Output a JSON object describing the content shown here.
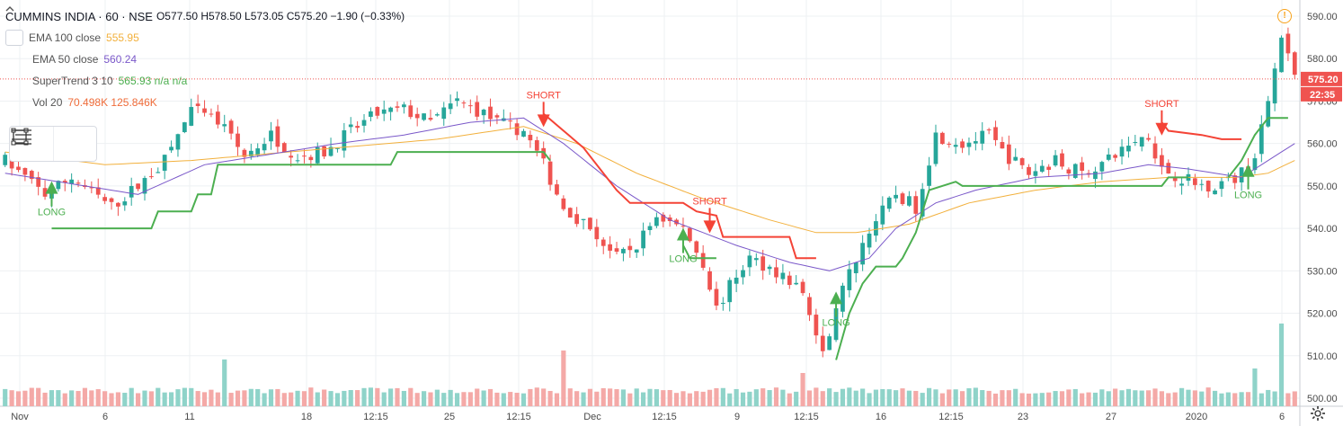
{
  "header": {
    "symbol": "CUMMINS INDIA · 60 · NSE",
    "ohlc": "O577.50  H578.50  L573.05  C575.20  −1.90 (−0.33%)"
  },
  "indicators": [
    {
      "name": "EMA 100 close",
      "value": "555.95",
      "color": "#f2b03c"
    },
    {
      "name": "EMA 50 close",
      "value": "560.24",
      "color": "#7a58c9"
    },
    {
      "name": "SuperTrend 3 10",
      "value": "565.93  n/a  n/a",
      "color": "#4caf50"
    },
    {
      "name": "Vol 20",
      "value": "70.498K  125.846K",
      "color": "#ef6c3a"
    }
  ],
  "price_axis": {
    "labels": [
      "590.00",
      "580.00",
      "570.00",
      "560.00",
      "550.00",
      "540.00",
      "530.00",
      "520.00",
      "510.00",
      "500.00"
    ],
    "last_price": "575.20",
    "countdown": "22:35",
    "last_price_color": "#ef5350"
  },
  "time_axis": {
    "labels": [
      "Nov",
      "6",
      "11",
      "18",
      "12:15",
      "25",
      "12:15",
      "Dec",
      "12:15",
      "9",
      "12:15",
      "16",
      "12:15",
      "23",
      "27",
      "2020",
      "6"
    ]
  },
  "signals": {
    "long": "LONG",
    "short": "SHORT"
  },
  "colors": {
    "up": "#26a69a",
    "down": "#ef5350",
    "st_up": "#4caf50",
    "st_down": "#f44336",
    "ema100": "#f2b03c",
    "ema50": "#7a58c9",
    "vol_up": "#8fd3c9",
    "vol_down": "#f4a9a7",
    "grid": "#eef0f3"
  },
  "chart_data": {
    "type": "candlestick",
    "title": "CUMMINS INDIA · 60 · NSE",
    "ylim": [
      499,
      592
    ],
    "y_ticks": [
      500,
      510,
      520,
      530,
      540,
      550,
      560,
      570,
      580,
      590
    ],
    "close_path": [
      [
        0,
        556
      ],
      [
        6,
        548
      ],
      [
        10,
        552
      ],
      [
        16,
        545
      ],
      [
        20,
        550
      ],
      [
        24,
        556
      ],
      [
        28,
        568
      ],
      [
        32,
        565
      ],
      [
        36,
        557
      ],
      [
        40,
        562
      ],
      [
        44,
        557
      ],
      [
        48,
        558
      ],
      [
        52,
        563
      ],
      [
        56,
        567
      ],
      [
        60,
        568
      ],
      [
        64,
        565
      ],
      [
        68,
        570
      ],
      [
        72,
        567
      ],
      [
        74,
        565
      ],
      [
        78,
        563
      ],
      [
        81,
        555
      ],
      [
        84,
        545
      ],
      [
        88,
        540
      ],
      [
        92,
        533
      ],
      [
        95,
        536
      ],
      [
        98,
        543
      ],
      [
        102,
        540
      ],
      [
        105,
        532
      ],
      [
        107,
        521
      ],
      [
        110,
        529
      ],
      [
        112,
        533
      ],
      [
        116,
        530
      ],
      [
        120,
        525
      ],
      [
        123,
        510
      ],
      [
        125,
        522
      ],
      [
        128,
        533
      ],
      [
        130,
        540
      ],
      [
        134,
        548
      ],
      [
        137,
        545
      ],
      [
        140,
        562
      ],
      [
        144,
        560
      ],
      [
        148,
        562
      ],
      [
        150,
        558
      ],
      [
        154,
        553
      ],
      [
        158,
        556
      ],
      [
        162,
        553
      ],
      [
        166,
        556
      ],
      [
        169,
        560
      ],
      [
        172,
        562
      ],
      [
        174,
        554
      ],
      [
        177,
        552
      ],
      [
        180,
        550
      ],
      [
        184,
        551
      ],
      [
        186,
        553
      ],
      [
        188,
        557
      ],
      [
        190,
        570
      ],
      [
        192,
        586
      ],
      [
        194,
        575
      ]
    ],
    "ema50": [
      [
        0,
        553
      ],
      [
        20,
        548
      ],
      [
        30,
        555
      ],
      [
        50,
        560
      ],
      [
        60,
        562
      ],
      [
        70,
        565
      ],
      [
        78,
        566
      ],
      [
        84,
        560
      ],
      [
        92,
        550
      ],
      [
        100,
        542
      ],
      [
        110,
        536
      ],
      [
        118,
        532
      ],
      [
        124,
        530
      ],
      [
        130,
        533
      ],
      [
        134,
        540
      ],
      [
        140,
        546
      ],
      [
        146,
        549
      ],
      [
        155,
        552
      ],
      [
        165,
        553
      ],
      [
        172,
        555
      ],
      [
        178,
        554
      ],
      [
        186,
        552
      ],
      [
        190,
        556
      ],
      [
        194,
        560
      ]
    ],
    "ema100": [
      [
        0,
        558
      ],
      [
        15,
        555
      ],
      [
        28,
        556
      ],
      [
        50,
        559
      ],
      [
        65,
        561
      ],
      [
        78,
        564
      ],
      [
        86,
        560
      ],
      [
        95,
        553
      ],
      [
        105,
        547
      ],
      [
        115,
        542
      ],
      [
        122,
        539
      ],
      [
        128,
        539
      ],
      [
        136,
        541
      ],
      [
        145,
        546
      ],
      [
        155,
        549
      ],
      [
        165,
        551
      ],
      [
        175,
        552
      ],
      [
        185,
        552
      ],
      [
        190,
        553
      ],
      [
        194,
        556
      ]
    ],
    "supertrend_up": [
      [
        [
          7,
          540
        ],
        [
          22,
          540
        ],
        [
          23,
          544
        ],
        [
          28,
          544
        ],
        [
          29,
          548
        ],
        [
          31,
          548
        ],
        [
          32,
          555
        ],
        [
          58,
          555
        ],
        [
          59,
          558
        ],
        [
          81,
          558
        ],
        [
          82,
          556
        ]
      ],
      [
        [
          102,
          536
        ],
        [
          103,
          533
        ],
        [
          107,
          533
        ]
      ],
      [
        [
          125,
          509
        ],
        [
          127,
          520
        ],
        [
          129,
          527
        ],
        [
          131,
          531
        ],
        [
          134,
          531
        ],
        [
          135,
          533
        ],
        [
          137,
          539
        ],
        [
          139,
          549
        ],
        [
          143,
          551
        ],
        [
          144,
          550
        ],
        [
          165,
          550
        ],
        [
          174,
          550
        ],
        [
          175,
          552
        ],
        [
          178,
          552
        ]
      ],
      [
        [
          184,
          552
        ],
        [
          186,
          556
        ],
        [
          188,
          562
        ],
        [
          190,
          566
        ],
        [
          193,
          566
        ]
      ]
    ],
    "supertrend_down": [
      [
        [
          81,
          567
        ],
        [
          84,
          563
        ],
        [
          87,
          559
        ],
        [
          90,
          553
        ],
        [
          92,
          549
        ],
        [
          94,
          546
        ],
        [
          102,
          546
        ],
        [
          104,
          544
        ],
        [
          107,
          543
        ],
        [
          108,
          538
        ],
        [
          118,
          538
        ],
        [
          119,
          533
        ],
        [
          122,
          533
        ]
      ],
      [
        [
          174,
          565
        ],
        [
          175,
          563
        ],
        [
          180,
          562
        ],
        [
          183,
          561
        ],
        [
          186,
          561
        ]
      ]
    ],
    "signals": [
      {
        "type": "long",
        "bar": 7,
        "price": 549
      },
      {
        "type": "short",
        "bar": 81,
        "price": 566
      },
      {
        "type": "long",
        "bar": 102,
        "price": 538
      },
      {
        "type": "short",
        "bar": 106,
        "price": 541
      },
      {
        "type": "long",
        "bar": 125,
        "price": 523
      },
      {
        "type": "short",
        "bar": 174,
        "price": 564
      },
      {
        "type": "long",
        "bar": 187,
        "price": 553
      }
    ],
    "volume_spikes": [
      {
        "bar": 33,
        "value": 80
      },
      {
        "bar": 84,
        "value": 100
      },
      {
        "bar": 120,
        "value": 50
      },
      {
        "bar": 188,
        "value": 60
      },
      {
        "bar": 192,
        "value": 160
      }
    ],
    "bar_count": 195,
    "last_price": 575.2,
    "xlabel": "",
    "ylabel": ""
  }
}
